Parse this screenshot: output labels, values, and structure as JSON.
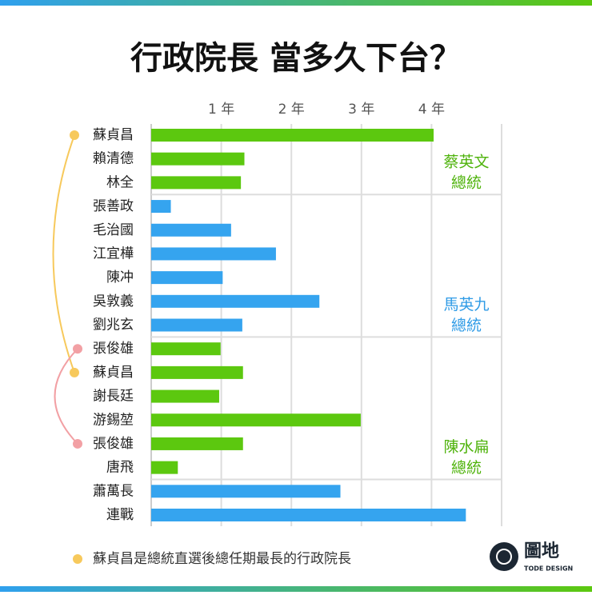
{
  "chart_data": {
    "type": "hbar",
    "title": "行政院長 當多久下台？",
    "categories": [
      "蘇貞昌",
      "賴清德",
      "林全",
      "張善政",
      "毛治國",
      "江宜樺",
      "陳冲",
      "吳敦義",
      "劉兆玄",
      "張俊雄",
      "蘇貞昌",
      "謝長廷",
      "游錫堃",
      "張俊雄",
      "唐飛",
      "蕭萬長",
      "連戰"
    ],
    "values": [
      4.03,
      1.33,
      1.28,
      0.28,
      1.14,
      1.78,
      1.02,
      2.4,
      1.3,
      0.99,
      1.31,
      0.97,
      2.99,
      1.31,
      0.38,
      2.7,
      4.49
    ],
    "colors": [
      "#5cc80f",
      "#5cc80f",
      "#5cc80f",
      "#35a4ef",
      "#35a4ef",
      "#35a4ef",
      "#35a4ef",
      "#35a4ef",
      "#35a4ef",
      "#5cc80f",
      "#5cc80f",
      "#5cc80f",
      "#5cc80f",
      "#5cc80f",
      "#5cc80f",
      "#35a4ef",
      "#35a4ef"
    ],
    "xlim": [
      0,
      5
    ],
    "xticks": [
      {
        "value": 1,
        "label": "1 年"
      },
      {
        "value": 2,
        "label": "2 年"
      },
      {
        "value": 3,
        "label": "3 年"
      },
      {
        "value": 4,
        "label": "4 年"
      }
    ],
    "grid": true,
    "annotations": [
      {
        "lines": [
          "蔡英文",
          "總統"
        ],
        "color": "#4fb30c"
      },
      {
        "lines": [
          "馬英九",
          "總統"
        ],
        "color": "#2f9be6"
      },
      {
        "lines": [
          "陳水扁",
          "總統"
        ],
        "color": "#4fb30c"
      }
    ],
    "note": "蘇貞昌是總統直選後總任期最長的行政院長",
    "logo": {
      "name": "圖地",
      "sub": "TODE DESIGN"
    }
  }
}
